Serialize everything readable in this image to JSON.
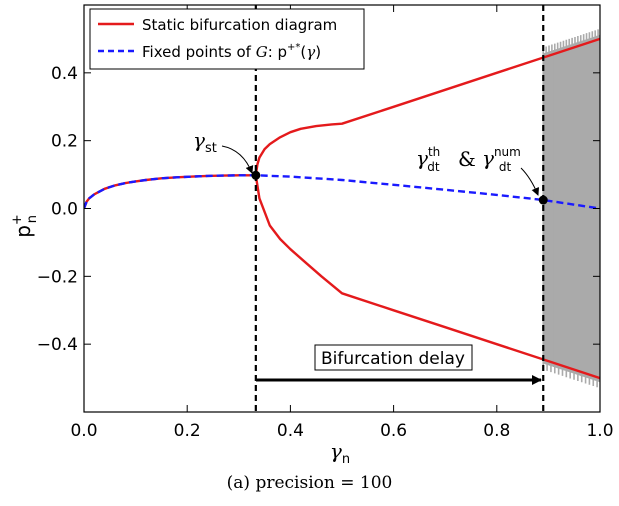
{
  "chart_data": {
    "type": "line",
    "xlabel": "γn",
    "ylabel": "p+n",
    "xlim": [
      0.0,
      1.0
    ],
    "ylim": [
      -0.6,
      0.6
    ],
    "x_ticks": [
      0.0,
      0.2,
      0.4,
      0.6,
      0.8,
      1.0
    ],
    "x_tick_labels": [
      "0.0",
      "0.2",
      "0.4",
      "0.6",
      "0.8",
      "1.0"
    ],
    "y_ticks": [
      -0.4,
      -0.2,
      0.0,
      0.2,
      0.4
    ],
    "y_tick_labels": [
      "−0.4",
      "−0.2",
      "0.0",
      "0.2",
      "0.4"
    ],
    "grid": false,
    "legend_position": "top-left",
    "series": [
      {
        "name": "Static bifurcation diagram",
        "style": "solid",
        "color": "#e41a1c",
        "branches": [
          {
            "x": [
              0.0,
              0.005,
              0.01,
              0.02,
              0.04,
              0.06,
              0.08,
              0.1,
              0.12,
              0.15,
              0.18,
              0.21,
              0.24,
              0.27,
              0.3,
              0.333
            ],
            "y": [
              0.0,
              0.02,
              0.03,
              0.042,
              0.058,
              0.068,
              0.075,
              0.08,
              0.084,
              0.089,
              0.092,
              0.094,
              0.096,
              0.097,
              0.098,
              0.098
            ]
          },
          {
            "x": [
              0.333,
              0.336,
              0.34,
              0.35,
              0.36,
              0.38,
              0.4,
              0.42,
              0.45,
              0.48,
              0.5,
              0.6,
              0.7,
              0.8,
              0.9,
              1.0
            ],
            "y": [
              0.098,
              0.13,
              0.15,
              0.175,
              0.19,
              0.21,
              0.225,
              0.235,
              0.243,
              0.248,
              0.25,
              0.3,
              0.35,
              0.4,
              0.45,
              0.5
            ]
          },
          {
            "x": [
              0.333,
              0.34,
              0.36,
              0.38,
              0.4,
              0.43,
              0.46,
              0.5,
              0.6,
              0.7,
              0.8,
              0.9,
              1.0
            ],
            "y": [
              0.098,
              0.03,
              -0.05,
              -0.09,
              -0.12,
              -0.16,
              -0.2,
              -0.25,
              -0.3,
              -0.35,
              -0.4,
              -0.45,
              -0.5
            ]
          }
        ]
      },
      {
        "name": "Fixed points of G: p+*(γ)",
        "style": "dashed",
        "color": "#1a1aff",
        "x": [
          0.0,
          0.005,
          0.01,
          0.02,
          0.04,
          0.06,
          0.08,
          0.1,
          0.12,
          0.15,
          0.18,
          0.21,
          0.24,
          0.27,
          0.3,
          0.333,
          0.4,
          0.5,
          0.6,
          0.7,
          0.8,
          0.89,
          1.0
        ],
        "y": [
          0.0,
          0.02,
          0.03,
          0.042,
          0.058,
          0.068,
          0.075,
          0.08,
          0.084,
          0.089,
          0.092,
          0.094,
          0.096,
          0.097,
          0.098,
          0.098,
          0.094,
          0.084,
          0.07,
          0.055,
          0.04,
          0.025,
          0.0
        ]
      }
    ],
    "oscillation_band": {
      "x_start": 0.89,
      "x_end": 1.0,
      "color": "#aaaaaa"
    },
    "vertical_lines": [
      0.333,
      0.89
    ],
    "points": [
      {
        "x": 0.333,
        "y": 0.098
      },
      {
        "x": 0.89,
        "y": 0.025
      }
    ],
    "annotations": {
      "gamma_st": "γst",
      "gamma_dt": "γthdt & γnumdt",
      "delay_label": "Bifurcation delay"
    }
  },
  "caption": "(a) precision = 100"
}
